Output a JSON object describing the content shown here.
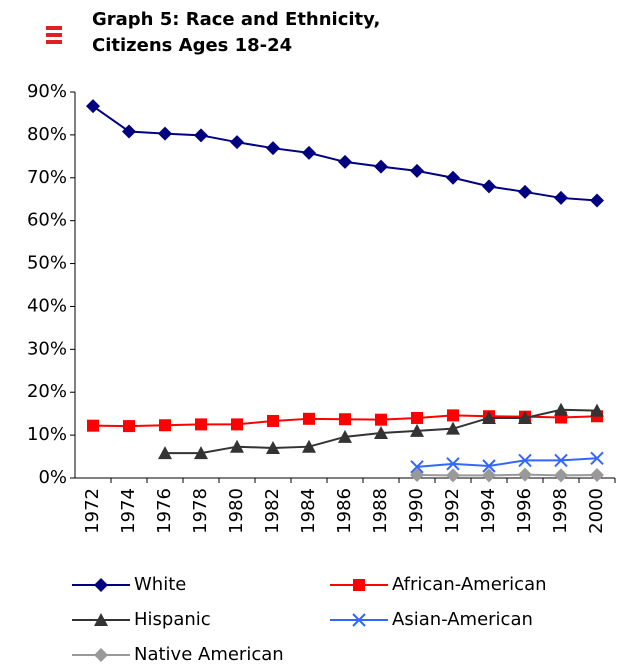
{
  "chart_data": {
    "type": "line",
    "title": [
      "Graph 5: Race and Ethnicity,",
      "Citizens Ages 18-24"
    ],
    "categories": [
      "1972",
      "1974",
      "1976",
      "1978",
      "1980",
      "1982",
      "1984",
      "1986",
      "1988",
      "1990",
      "1992",
      "1994",
      "1996",
      "1998",
      "2000"
    ],
    "series": [
      {
        "name": "White",
        "color": "#000080",
        "marker": "diamond",
        "values": [
          86.7,
          80.8,
          80.3,
          79.9,
          78.3,
          76.9,
          75.8,
          73.7,
          72.6,
          71.6,
          70.0,
          68.0,
          66.7,
          65.3,
          64.7
        ]
      },
      {
        "name": "African-American",
        "color": "#ff0000",
        "marker": "square",
        "values": [
          12.2,
          12.1,
          12.3,
          12.5,
          12.5,
          13.3,
          13.8,
          13.7,
          13.6,
          14.0,
          14.6,
          14.4,
          14.3,
          14.1,
          14.4
        ]
      },
      {
        "name": "Hispanic",
        "color": "#333333",
        "marker": "triangle",
        "values": [
          null,
          null,
          5.8,
          5.8,
          7.3,
          7.0,
          7.3,
          9.6,
          10.5,
          11.0,
          11.5,
          14.0,
          14.0,
          15.9,
          15.7
        ]
      },
      {
        "name": "Asian-American",
        "color": "#3366ff",
        "marker": "x",
        "values": [
          null,
          null,
          null,
          null,
          null,
          null,
          null,
          null,
          null,
          2.6,
          3.3,
          2.8,
          4.1,
          4.1,
          4.6
        ]
      },
      {
        "name": "Native American",
        "color": "#999999",
        "marker": "diamond",
        "values": [
          null,
          null,
          null,
          null,
          null,
          null,
          null,
          null,
          null,
          0.7,
          0.6,
          0.6,
          0.8,
          0.6,
          0.7
        ]
      }
    ],
    "ylim": [
      0,
      90
    ],
    "yticks": [
      {
        "value": 0,
        "label": "0%"
      },
      {
        "value": 10,
        "label": "10%"
      },
      {
        "value": 20,
        "label": "20%"
      },
      {
        "value": 30,
        "label": "30%"
      },
      {
        "value": 40,
        "label": "40%"
      },
      {
        "value": 50,
        "label": "50%"
      },
      {
        "value": 60,
        "label": "60%"
      },
      {
        "value": 70,
        "label": "70%"
      },
      {
        "value": 80,
        "label": "80%"
      },
      {
        "value": 90,
        "label": "90%"
      }
    ],
    "grid": false
  }
}
